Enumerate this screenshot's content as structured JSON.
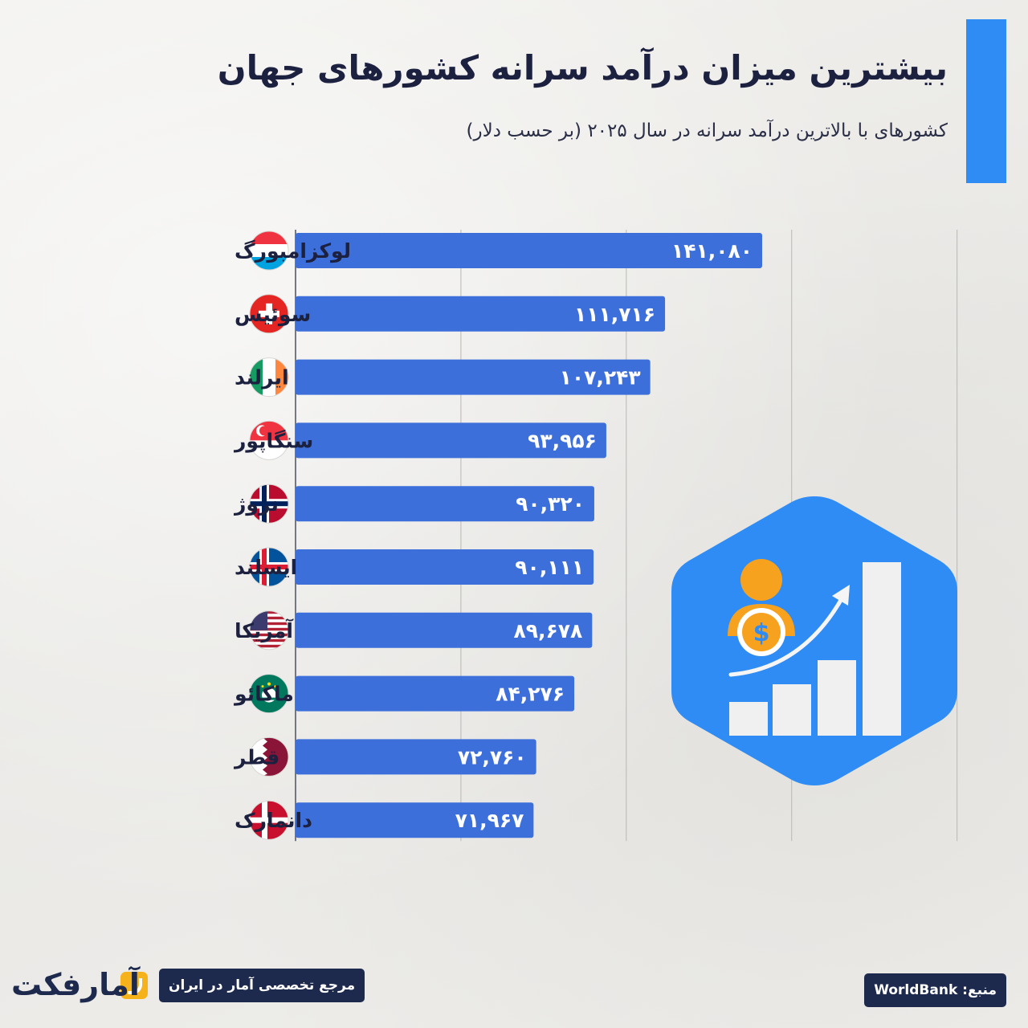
{
  "header": {
    "title": "بیشترین میزان درآمد سرانه کشورهای جهان",
    "subtitle": "کشورهای با بالاترین درآمد سرانه در سال ۲۰۲۵ (بر حسب دلار)"
  },
  "chart_data": {
    "type": "bar",
    "orientation": "horizontal",
    "categories": [
      "لوکزامبورگ",
      "سوئیس",
      "ایرلند",
      "سنگاپور",
      "نروژ",
      "ایسلند",
      "آمریکا",
      "ماکائو",
      "قطر",
      "دانمارک"
    ],
    "values": [
      141080,
      111716,
      107243,
      93956,
      90320,
      90111,
      89678,
      84276,
      72760,
      71967
    ],
    "value_labels": [
      "۱۴۱,۰۸۰",
      "۱۱۱,۷۱۶",
      "۱۰۷,۲۴۳",
      "۹۳,۹۵۶",
      "۹۰,۳۲۰",
      "۹۰,۱۱۱",
      "۸۹,۶۷۸",
      "۸۴,۲۷۶",
      "۷۲,۷۶۰",
      "۷۱,۹۶۷"
    ],
    "flags": [
      "luxembourg-flag",
      "switzerland-flag",
      "ireland-flag",
      "singapore-flag",
      "norway-flag",
      "iceland-flag",
      "usa-flag",
      "macau-flag",
      "qatar-flag",
      "denmark-flag"
    ],
    "xlim": [
      0,
      200000
    ],
    "grid": true,
    "bar_color": "#3d6fdb",
    "title": "بیشترین میزان درآمد سرانه کشورهای جهان",
    "subtitle": "کشورهای با بالاترین درآمد سرانه در سال ۲۰۲۵ (بر حسب دلار)"
  },
  "colors": {
    "accent": "#2f8cf4",
    "bar": "#3d6fdb",
    "dark": "#1d2a4d",
    "icon_orange": "#f6a21e"
  },
  "illustration": {
    "name": "income-growth-icon"
  },
  "footer": {
    "source": "منبع: WorldBank",
    "tagline": "مرجع تخصصی آمار در ایران",
    "brand": "آمارفکت"
  }
}
